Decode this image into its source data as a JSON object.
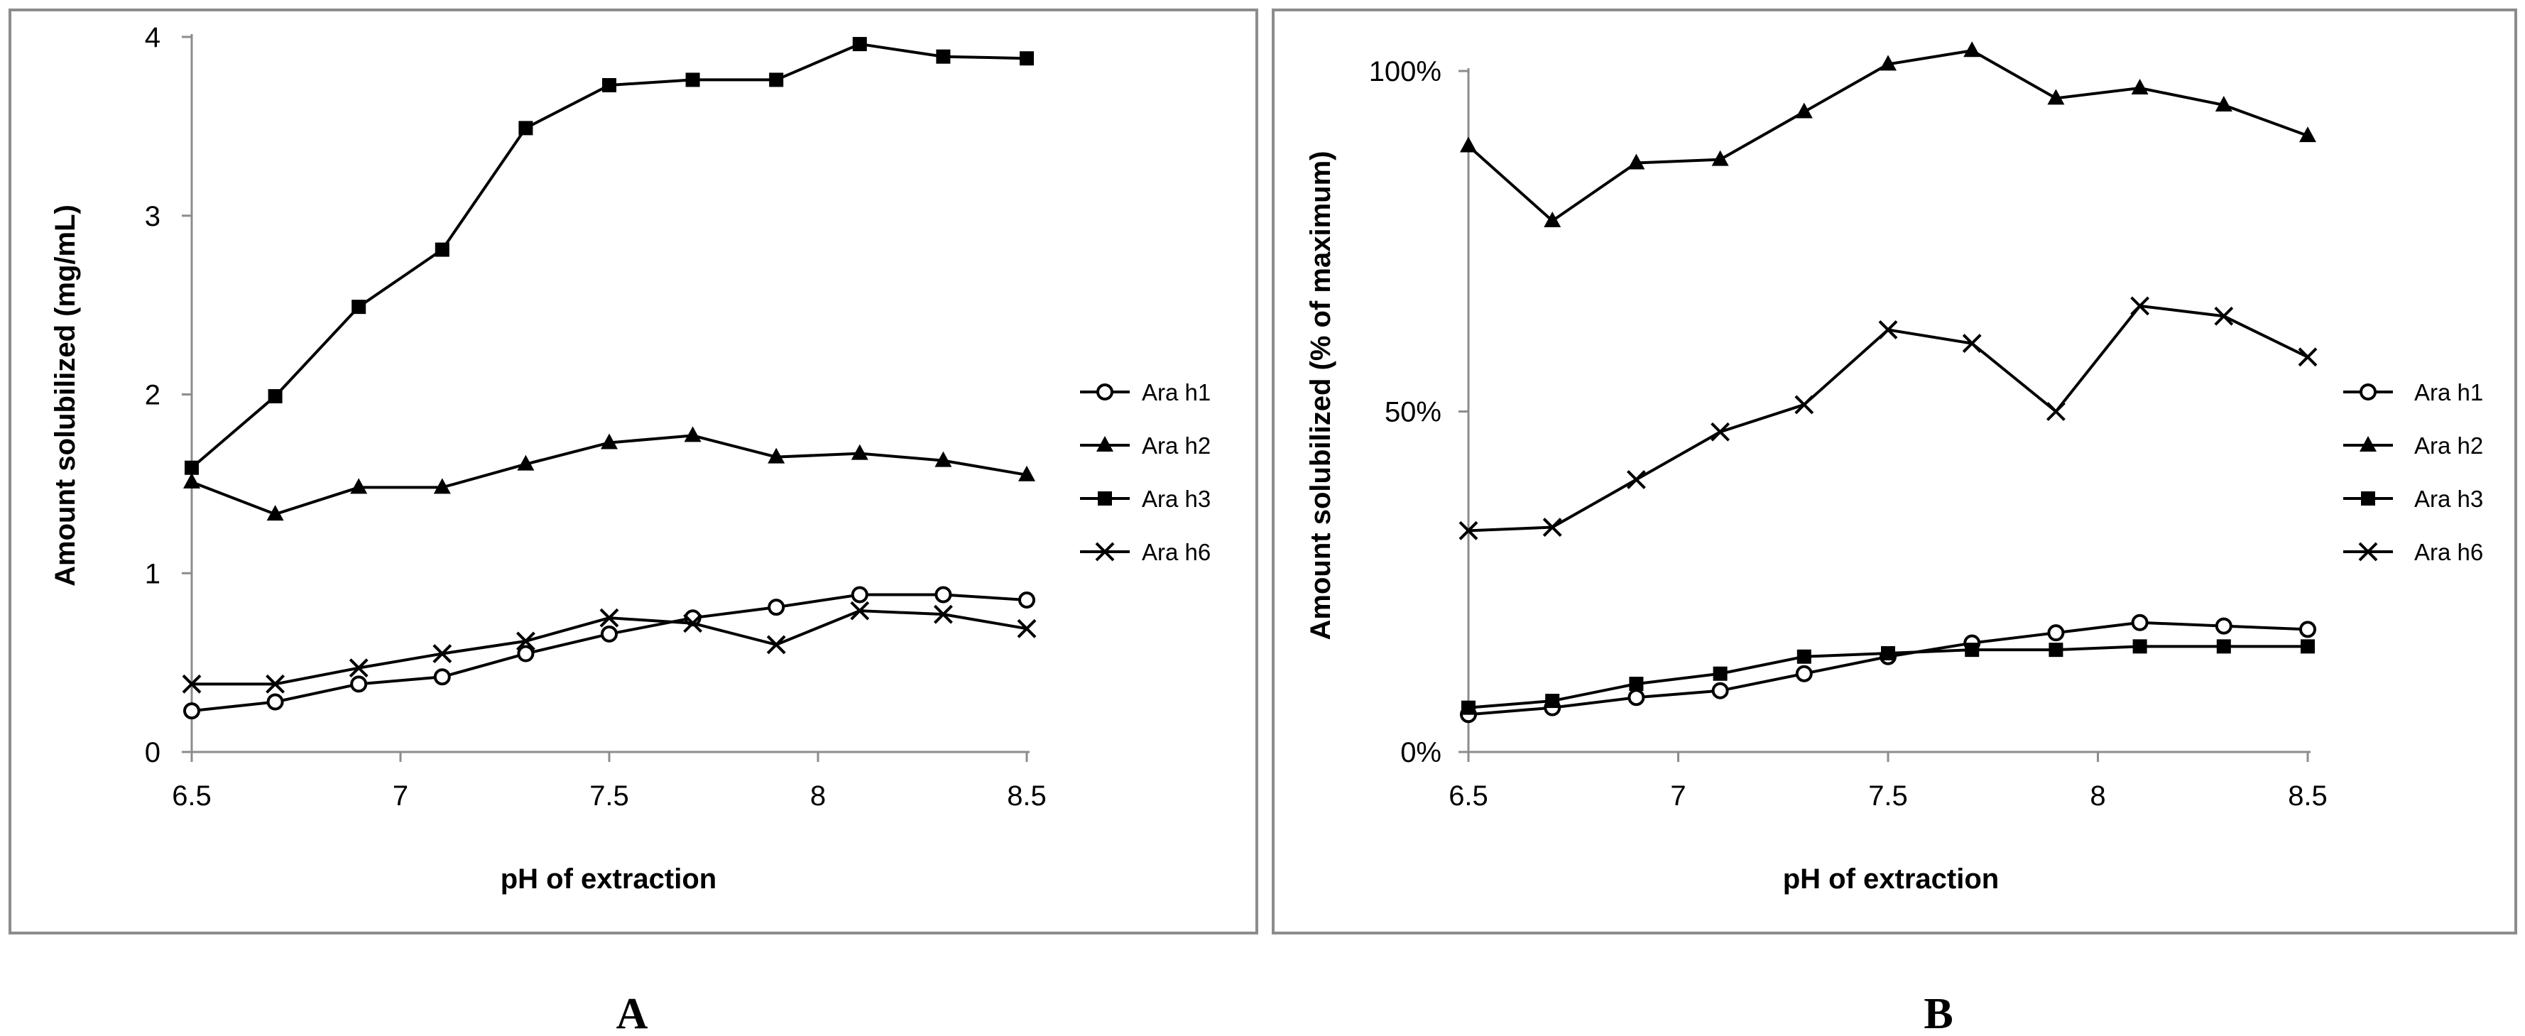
{
  "chart_data": [
    {
      "type": "line",
      "panel_label": "A",
      "title": "",
      "xlabel": "pH of extraction",
      "ylabel": "Amount solubilized (mg/mL)",
      "xlim": [
        6.5,
        8.5
      ],
      "ylim": [
        0,
        4
      ],
      "xticks": [
        6.5,
        7,
        7.5,
        8,
        8.5
      ],
      "xtick_labels": [
        "6.5",
        "7",
        "7.5",
        "8",
        "8.5"
      ],
      "yticks": [
        0,
        1,
        2,
        3,
        4
      ],
      "ytick_labels": [
        "0",
        "1",
        "2",
        "3",
        "4"
      ],
      "grid": false,
      "legend_position": "right",
      "x": [
        6.5,
        6.7,
        6.9,
        7.1,
        7.3,
        7.5,
        7.7,
        7.9,
        8.1,
        8.3,
        8.5
      ],
      "series": [
        {
          "name": "Ara h1",
          "marker": "circle-open",
          "values": [
            0.23,
            0.28,
            0.38,
            0.42,
            0.55,
            0.66,
            0.75,
            0.81,
            0.88,
            0.88,
            0.85
          ]
        },
        {
          "name": "Ara h2",
          "marker": "triangle",
          "values": [
            1.51,
            1.33,
            1.48,
            1.48,
            1.61,
            1.73,
            1.77,
            1.65,
            1.67,
            1.63,
            1.55
          ]
        },
        {
          "name": "Ara h3",
          "marker": "square",
          "values": [
            1.59,
            1.99,
            2.49,
            2.81,
            3.49,
            3.73,
            3.76,
            3.76,
            3.96,
            3.89,
            3.88
          ]
        },
        {
          "name": "Ara h6",
          "marker": "x",
          "values": [
            0.38,
            0.38,
            0.47,
            0.55,
            0.62,
            0.75,
            0.72,
            0.6,
            0.79,
            0.77,
            0.69
          ]
        }
      ]
    },
    {
      "type": "line",
      "panel_label": "B",
      "title": "",
      "xlabel": "pH of extraction",
      "ylabel": "Amount solubilized (% of maximum)",
      "xlim": [
        6.5,
        8.5
      ],
      "ylim": [
        0,
        100
      ],
      "xticks": [
        6.5,
        7,
        7.5,
        8,
        8.5
      ],
      "xtick_labels": [
        "6.5",
        "7",
        "7.5",
        "8",
        "8.5"
      ],
      "yticks": [
        0,
        50,
        100
      ],
      "ytick_labels": [
        "0%",
        "50%",
        "100%"
      ],
      "grid": false,
      "legend_position": "right",
      "x": [
        6.5,
        6.7,
        6.9,
        7.1,
        7.3,
        7.5,
        7.7,
        7.9,
        8.1,
        8.3,
        8.5
      ],
      "series": [
        {
          "name": "Ara h1",
          "marker": "circle-open",
          "values": [
            5.5,
            6.5,
            8,
            9,
            11.5,
            14,
            16,
            17.5,
            19,
            18.5,
            18
          ]
        },
        {
          "name": "Ara h2",
          "marker": "triangle",
          "values": [
            89,
            78,
            86.5,
            87,
            94,
            101,
            103,
            96,
            97.5,
            95,
            90.5
          ]
        },
        {
          "name": "Ara h3",
          "marker": "square",
          "values": [
            6.5,
            7.5,
            10,
            11.5,
            14,
            14.5,
            15,
            15,
            15.5,
            15.5,
            15.5
          ]
        },
        {
          "name": "Ara h6",
          "marker": "x",
          "values": [
            32.5,
            33,
            40,
            47,
            51,
            62,
            60,
            50,
            65.5,
            64,
            58
          ]
        }
      ]
    }
  ]
}
